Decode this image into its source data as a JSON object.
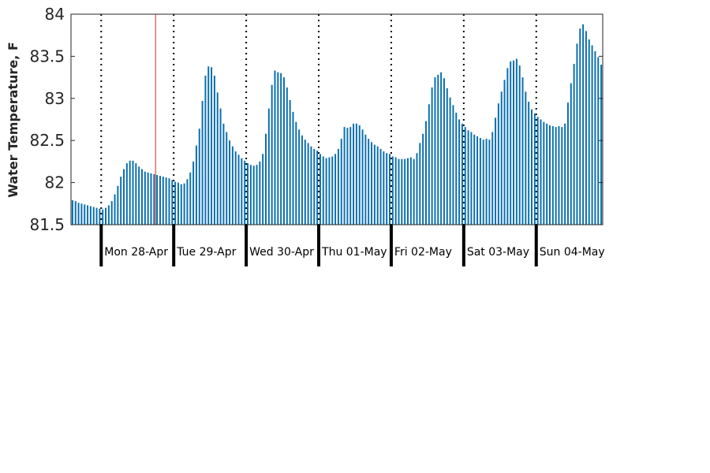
{
  "chart_data": {
    "type": "bar",
    "xlabel": "",
    "ylabel": "Water Temperature, F",
    "ylim": [
      81.5,
      84
    ],
    "yticks": [
      "81.5",
      "82",
      "82.5",
      "83",
      "83.5",
      "84"
    ],
    "x_unit": "hourly readings",
    "x_start": "2014-04-27 14:00",
    "day_labels": [
      "Mon 28-Apr",
      "Tue 29-Apr",
      "Wed 30-Apr",
      "Thu 01-May",
      "Fri 02-May",
      "Sat 03-May",
      "Sun 04-May"
    ],
    "marker_time": "2014-04-28 18:00",
    "grid": false,
    "colors": {
      "bar": "#0b6fb0",
      "marker": "#e8292b",
      "axis": "#262626"
    },
    "values": [
      81.79,
      81.78,
      81.76,
      81.75,
      81.74,
      81.73,
      81.72,
      81.71,
      81.7,
      81.69,
      81.68,
      81.7,
      81.73,
      81.78,
      81.86,
      81.96,
      82.07,
      82.16,
      82.23,
      82.26,
      82.26,
      82.23,
      82.19,
      82.16,
      82.13,
      82.12,
      82.11,
      82.1,
      82.09,
      82.08,
      82.07,
      82.06,
      82.05,
      82.03,
      82.01,
      82.0,
      81.98,
      81.99,
      82.04,
      82.12,
      82.25,
      82.44,
      82.64,
      82.97,
      83.27,
      83.38,
      83.37,
      83.27,
      83.07,
      82.88,
      82.7,
      82.6,
      82.5,
      82.43,
      82.37,
      82.33,
      82.29,
      82.26,
      82.23,
      82.21,
      82.2,
      82.21,
      82.25,
      82.34,
      82.58,
      82.88,
      83.16,
      83.33,
      83.31,
      83.3,
      83.25,
      83.13,
      82.98,
      82.84,
      82.72,
      82.63,
      82.56,
      82.51,
      82.47,
      82.43,
      82.4,
      82.38,
      82.34,
      82.31,
      82.29,
      82.3,
      82.31,
      82.34,
      82.4,
      82.52,
      82.66,
      82.65,
      82.66,
      82.7,
      82.7,
      82.68,
      82.63,
      82.57,
      82.52,
      82.48,
      82.45,
      82.43,
      82.4,
      82.37,
      82.35,
      82.34,
      82.31,
      82.3,
      82.28,
      82.28,
      82.28,
      82.29,
      82.3,
      82.28,
      82.35,
      82.47,
      82.58,
      82.73,
      82.93,
      83.13,
      83.25,
      83.28,
      83.31,
      83.24,
      83.12,
      83.01,
      82.92,
      82.83,
      82.75,
      82.7,
      82.66,
      82.62,
      82.6,
      82.57,
      82.55,
      82.53,
      82.51,
      82.52,
      82.51,
      82.6,
      82.77,
      82.94,
      83.08,
      83.22,
      83.36,
      83.44,
      83.45,
      83.47,
      83.39,
      83.25,
      83.08,
      82.96,
      82.87,
      82.82,
      82.78,
      82.75,
      82.72,
      82.7,
      82.68,
      82.67,
      82.66,
      82.67,
      82.66,
      82.7,
      82.95,
      83.18,
      83.41,
      83.65,
      83.83,
      83.88,
      83.8,
      83.7,
      83.63,
      83.56,
      83.49,
      83.4
    ]
  }
}
